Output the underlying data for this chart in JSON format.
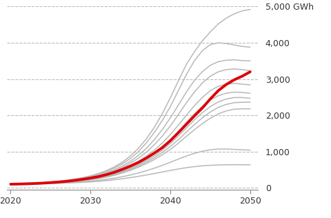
{
  "years": [
    2020,
    2021,
    2022,
    2023,
    2024,
    2025,
    2026,
    2027,
    2028,
    2029,
    2030,
    2031,
    2032,
    2033,
    2034,
    2035,
    2036,
    2037,
    2038,
    2039,
    2040,
    2041,
    2042,
    2043,
    2044,
    2045,
    2046,
    2047,
    2048,
    2049,
    2050
  ],
  "reference": [
    100,
    105,
    112,
    120,
    130,
    145,
    160,
    180,
    205,
    235,
    270,
    310,
    365,
    430,
    510,
    600,
    700,
    820,
    960,
    1110,
    1300,
    1520,
    1750,
    1980,
    2200,
    2450,
    2680,
    2850,
    2980,
    3080,
    3200
  ],
  "gray_scenarios": [
    [
      100,
      107,
      116,
      128,
      142,
      160,
      183,
      210,
      243,
      283,
      330,
      395,
      475,
      580,
      710,
      880,
      1090,
      1350,
      1670,
      2050,
      2480,
      2950,
      3400,
      3750,
      4050,
      4300,
      4520,
      4680,
      4800,
      4880,
      4920
    ],
    [
      100,
      106,
      114,
      125,
      138,
      156,
      177,
      202,
      233,
      270,
      315,
      375,
      450,
      545,
      665,
      810,
      1000,
      1240,
      1530,
      1860,
      2240,
      2680,
      3120,
      3500,
      3780,
      3950,
      4000,
      3980,
      3940,
      3900,
      3880
    ],
    [
      100,
      106,
      113,
      123,
      135,
      151,
      170,
      193,
      220,
      253,
      293,
      347,
      415,
      500,
      605,
      735,
      895,
      1090,
      1330,
      1610,
      1930,
      2280,
      2640,
      2960,
      3200,
      3380,
      3480,
      3520,
      3530,
      3510,
      3500
    ],
    [
      100,
      105,
      112,
      121,
      133,
      148,
      165,
      186,
      211,
      242,
      278,
      328,
      390,
      468,
      562,
      678,
      818,
      985,
      1190,
      1430,
      1710,
      2020,
      2340,
      2640,
      2890,
      3080,
      3200,
      3260,
      3280,
      3260,
      3230
    ],
    [
      100,
      105,
      111,
      120,
      131,
      145,
      161,
      181,
      204,
      232,
      265,
      311,
      368,
      437,
      520,
      617,
      735,
      875,
      1040,
      1240,
      1470,
      1730,
      2000,
      2260,
      2490,
      2680,
      2800,
      2860,
      2880,
      2860,
      2840
    ],
    [
      100,
      104,
      110,
      118,
      128,
      141,
      156,
      174,
      196,
      222,
      252,
      294,
      347,
      411,
      488,
      578,
      684,
      810,
      957,
      1130,
      1330,
      1560,
      1800,
      2040,
      2250,
      2420,
      2540,
      2610,
      2640,
      2630,
      2610
    ],
    [
      100,
      104,
      110,
      117,
      126,
      138,
      152,
      169,
      189,
      213,
      241,
      279,
      328,
      387,
      457,
      540,
      638,
      752,
      884,
      1040,
      1220,
      1430,
      1650,
      1870,
      2070,
      2240,
      2370,
      2450,
      2490,
      2490,
      2470
    ],
    [
      100,
      103,
      109,
      116,
      124,
      135,
      148,
      163,
      182,
      204,
      230,
      266,
      311,
      367,
      433,
      511,
      603,
      709,
      833,
      976,
      1140,
      1330,
      1540,
      1740,
      1930,
      2090,
      2220,
      2300,
      2350,
      2360,
      2360
    ],
    [
      100,
      103,
      108,
      115,
      122,
      132,
      144,
      158,
      175,
      195,
      220,
      253,
      295,
      347,
      409,
      482,
      569,
      668,
      782,
      912,
      1060,
      1230,
      1420,
      1600,
      1770,
      1920,
      2040,
      2120,
      2170,
      2180,
      2180
    ],
    [
      100,
      102,
      106,
      111,
      117,
      124,
      133,
      143,
      155,
      169,
      185,
      207,
      234,
      268,
      308,
      355,
      410,
      472,
      543,
      620,
      705,
      793,
      876,
      950,
      1010,
      1050,
      1070,
      1070,
      1060,
      1050,
      1040
    ],
    [
      100,
      101,
      104,
      108,
      113,
      118,
      125,
      133,
      141,
      151,
      163,
      180,
      200,
      224,
      252,
      283,
      318,
      355,
      395,
      438,
      480,
      520,
      556,
      585,
      607,
      622,
      632,
      637,
      638,
      637,
      634
    ]
  ],
  "xlim": [
    2019.5,
    2051
  ],
  "ylim": [
    -50,
    5000
  ],
  "yticks": [
    0,
    1000,
    2000,
    3000,
    4000,
    5000
  ],
  "ytick_labels": [
    "0",
    "1,000",
    "2,000",
    "3,000",
    "4,000",
    "5,000 GWh"
  ],
  "xticks": [
    2020,
    2030,
    2040,
    2050
  ],
  "gray_color": "#b8b8b8",
  "ref_color": "#dd0008",
  "background_color": "#ffffff",
  "grid_color": "#bbbbbb",
  "ref_linewidth": 2.8,
  "gray_linewidth": 1.1,
  "tick_fontsize": 9,
  "tick_color": "#333333"
}
